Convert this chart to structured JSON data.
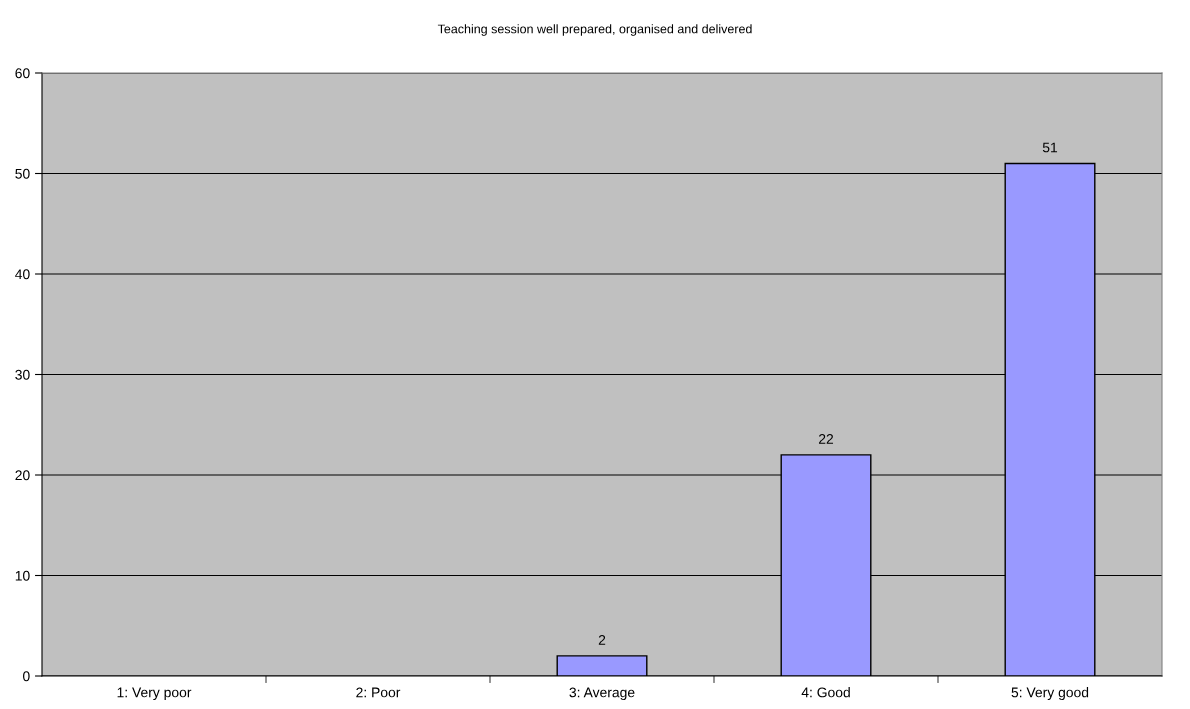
{
  "chart_data": {
    "type": "bar",
    "title": "Teaching session well prepared, organised and delivered",
    "categories": [
      "1: Very poor",
      "2: Poor",
      "3: Average",
      "4: Good",
      "5: Very good"
    ],
    "values": [
      null,
      null,
      2,
      22,
      51
    ],
    "color": "#9999ff",
    "ylim": [
      0,
      60
    ],
    "yticks": [
      0,
      10,
      20,
      30,
      40,
      50,
      60
    ],
    "grid": "y",
    "data_labels": true,
    "legend": false
  }
}
